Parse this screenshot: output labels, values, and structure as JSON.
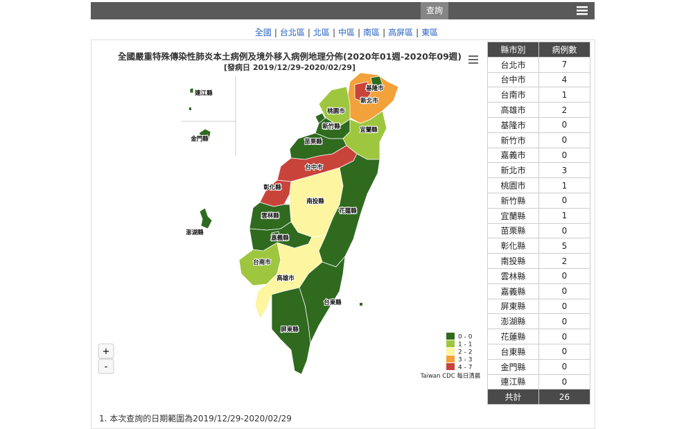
{
  "nav": {
    "button": "查詢"
  },
  "links": [
    "全國",
    "台北區",
    "北區",
    "中區",
    "南區",
    "高屏區",
    "東區"
  ],
  "map": {
    "title": "全國嚴重特殊傳染性肺炎本土病例及境外移入病例地理分佈(2020年01週-2020年09週)",
    "subtitle": "[發病日 2019/12/29-2020/02/29]",
    "legend": [
      {
        "label": "0 - 0",
        "from": 0,
        "to": 0,
        "color": "#2f6a1f"
      },
      {
        "label": "1 - 1",
        "from": 1,
        "to": 1,
        "color": "#9ec63f"
      },
      {
        "label": "2 - 2",
        "from": 2,
        "to": 2,
        "color": "#fdf5a0"
      },
      {
        "label": "3 - 3",
        "from": 3,
        "to": 3,
        "color": "#f3a13a"
      },
      {
        "label": "4 - 7",
        "from": 4,
        "to": 7,
        "color": "#c8443b"
      }
    ],
    "credit": "Taiwan CDC 每日清晨",
    "zoom_in": "+",
    "zoom_out": "-"
  },
  "table": {
    "header": [
      "縣市別",
      "病例數"
    ],
    "rows": [
      [
        "台北市",
        7
      ],
      [
        "台中市",
        4
      ],
      [
        "台南市",
        1
      ],
      [
        "高雄市",
        2
      ],
      [
        "基隆市",
        0
      ],
      [
        "新竹市",
        0
      ],
      [
        "嘉義市",
        0
      ],
      [
        "新北市",
        3
      ],
      [
        "桃園市",
        1
      ],
      [
        "新竹縣",
        0
      ],
      [
        "宜蘭縣",
        1
      ],
      [
        "苗栗縣",
        0
      ],
      [
        "彰化縣",
        5
      ],
      [
        "南投縣",
        2
      ],
      [
        "雲林縣",
        0
      ],
      [
        "嘉義縣",
        0
      ],
      [
        "屏東縣",
        0
      ],
      [
        "澎湖縣",
        0
      ],
      [
        "花蓮縣",
        0
      ],
      [
        "台東縣",
        0
      ],
      [
        "金門縣",
        0
      ],
      [
        "連江縣",
        0
      ]
    ],
    "total": [
      "共計",
      26
    ]
  },
  "footer": "1. 本次查詢的日期範圍為2019/12/29-2020/02/29"
}
